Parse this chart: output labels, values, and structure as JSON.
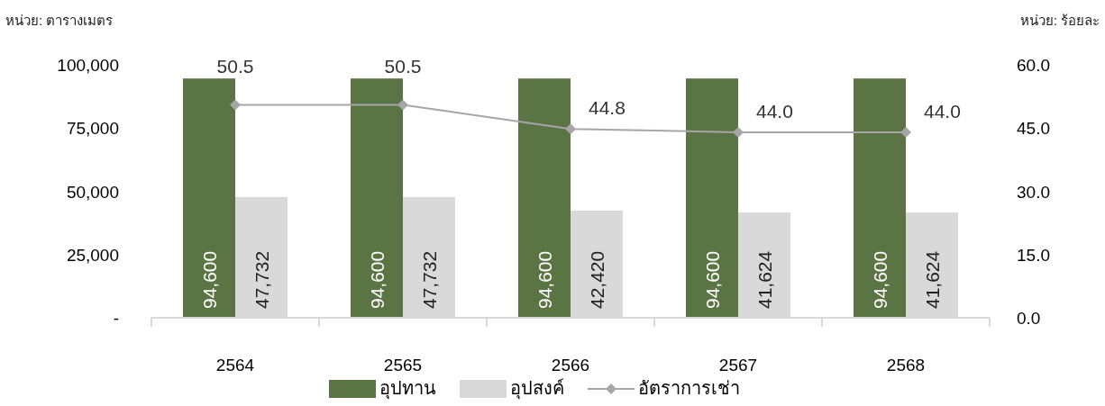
{
  "chart_data": {
    "type": "bar",
    "ylabel": "หน่วย: ตารางเมตร",
    "y2label": "หน่วย: ร้อยละ",
    "categories": [
      "2564",
      "2565",
      "2566",
      "2567",
      "2568"
    ],
    "series": [
      {
        "name": "อุปทาน",
        "color": "#5a7444",
        "values": [
          94600,
          94600,
          94600,
          94600,
          94600
        ],
        "value_labels": [
          "94,600",
          "94,600",
          "94,600",
          "94,600",
          "94,600"
        ]
      },
      {
        "name": "อุปสงค์",
        "color": "#d9d9d9",
        "values": [
          47732,
          47732,
          42420,
          41624,
          41624
        ],
        "value_labels": [
          "47,732",
          "47,732",
          "42,420",
          "41,624",
          "41,624"
        ]
      },
      {
        "name": "อัตราการเช่า",
        "type": "line",
        "axis": "y2",
        "color": "#a6a6a6",
        "values": [
          50.5,
          50.5,
          44.8,
          44.0,
          44.0
        ],
        "value_labels": [
          "50.5",
          "50.5",
          "44.8",
          "44.0",
          "44.0"
        ]
      }
    ],
    "ylim": [
      0,
      100000
    ],
    "yticks": [
      {
        "value": 0,
        "label": "-"
      },
      {
        "value": 25000,
        "label": "25,000"
      },
      {
        "value": 50000,
        "label": "50,000"
      },
      {
        "value": 75000,
        "label": "75,000"
      },
      {
        "value": 100000,
        "label": "100,000"
      }
    ],
    "y2lim": [
      0,
      60
    ],
    "y2ticks": [
      {
        "value": 0,
        "label": "0.0"
      },
      {
        "value": 15,
        "label": "15.0"
      },
      {
        "value": 30,
        "label": "30.0"
      },
      {
        "value": 45,
        "label": "45.0"
      },
      {
        "value": 60,
        "label": "60.0"
      }
    ],
    "marker": "diamond",
    "legend": "bottom"
  }
}
